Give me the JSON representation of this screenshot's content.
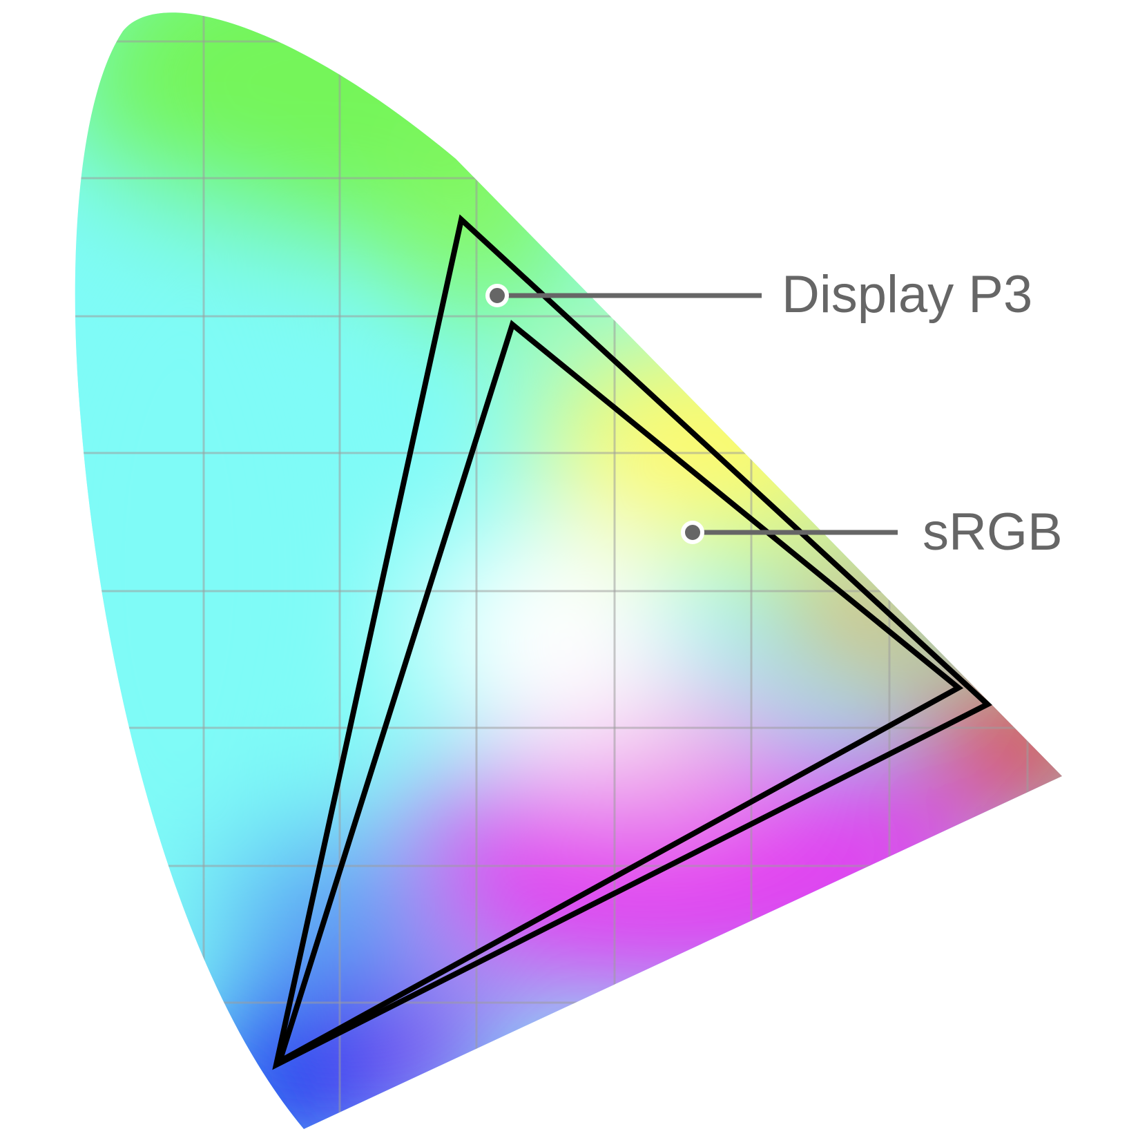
{
  "diagram": {
    "gamuts": [
      {
        "id": "display-p3",
        "label": "Display P3"
      },
      {
        "id": "srgb",
        "label": "sRGB"
      }
    ],
    "colors": {
      "green": "#74f55a",
      "cyan": "#7ffbf7",
      "blue": "#1626ee",
      "magenta": "#e23ef0",
      "red": "#e83a30",
      "yellow": "#fdfa6e",
      "white_point": "#ffffff",
      "outline": "#000000",
      "label": "#666666"
    }
  }
}
